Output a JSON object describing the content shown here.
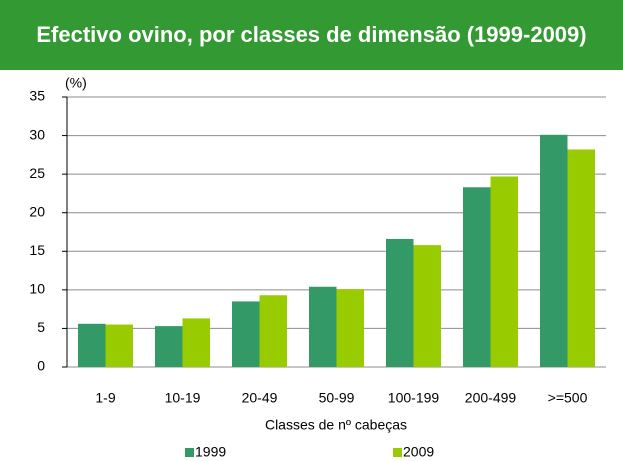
{
  "chart_data": {
    "type": "bar",
    "title": "Efectivo ovino, por classes de dimensão (1999-2009)",
    "y_label": "(%)",
    "x_label": "Classes de nº cabeças",
    "categories": [
      "1-9",
      "10-19",
      "20-49",
      "50-99",
      "100-199",
      "200-499",
      ">=500"
    ],
    "series": [
      {
        "name": "1999",
        "color": "#339966",
        "values": [
          5.6,
          5.3,
          8.5,
          10.4,
          16.6,
          23.3,
          30.1
        ]
      },
      {
        "name": "2009",
        "color": "#99cc00",
        "values": [
          5.5,
          6.3,
          9.3,
          10.1,
          15.8,
          24.7,
          28.2
        ]
      }
    ],
    "ylim": [
      0,
      35
    ],
    "yticks": [
      0,
      5,
      10,
      15,
      20,
      25,
      30,
      35
    ],
    "grid": true
  }
}
